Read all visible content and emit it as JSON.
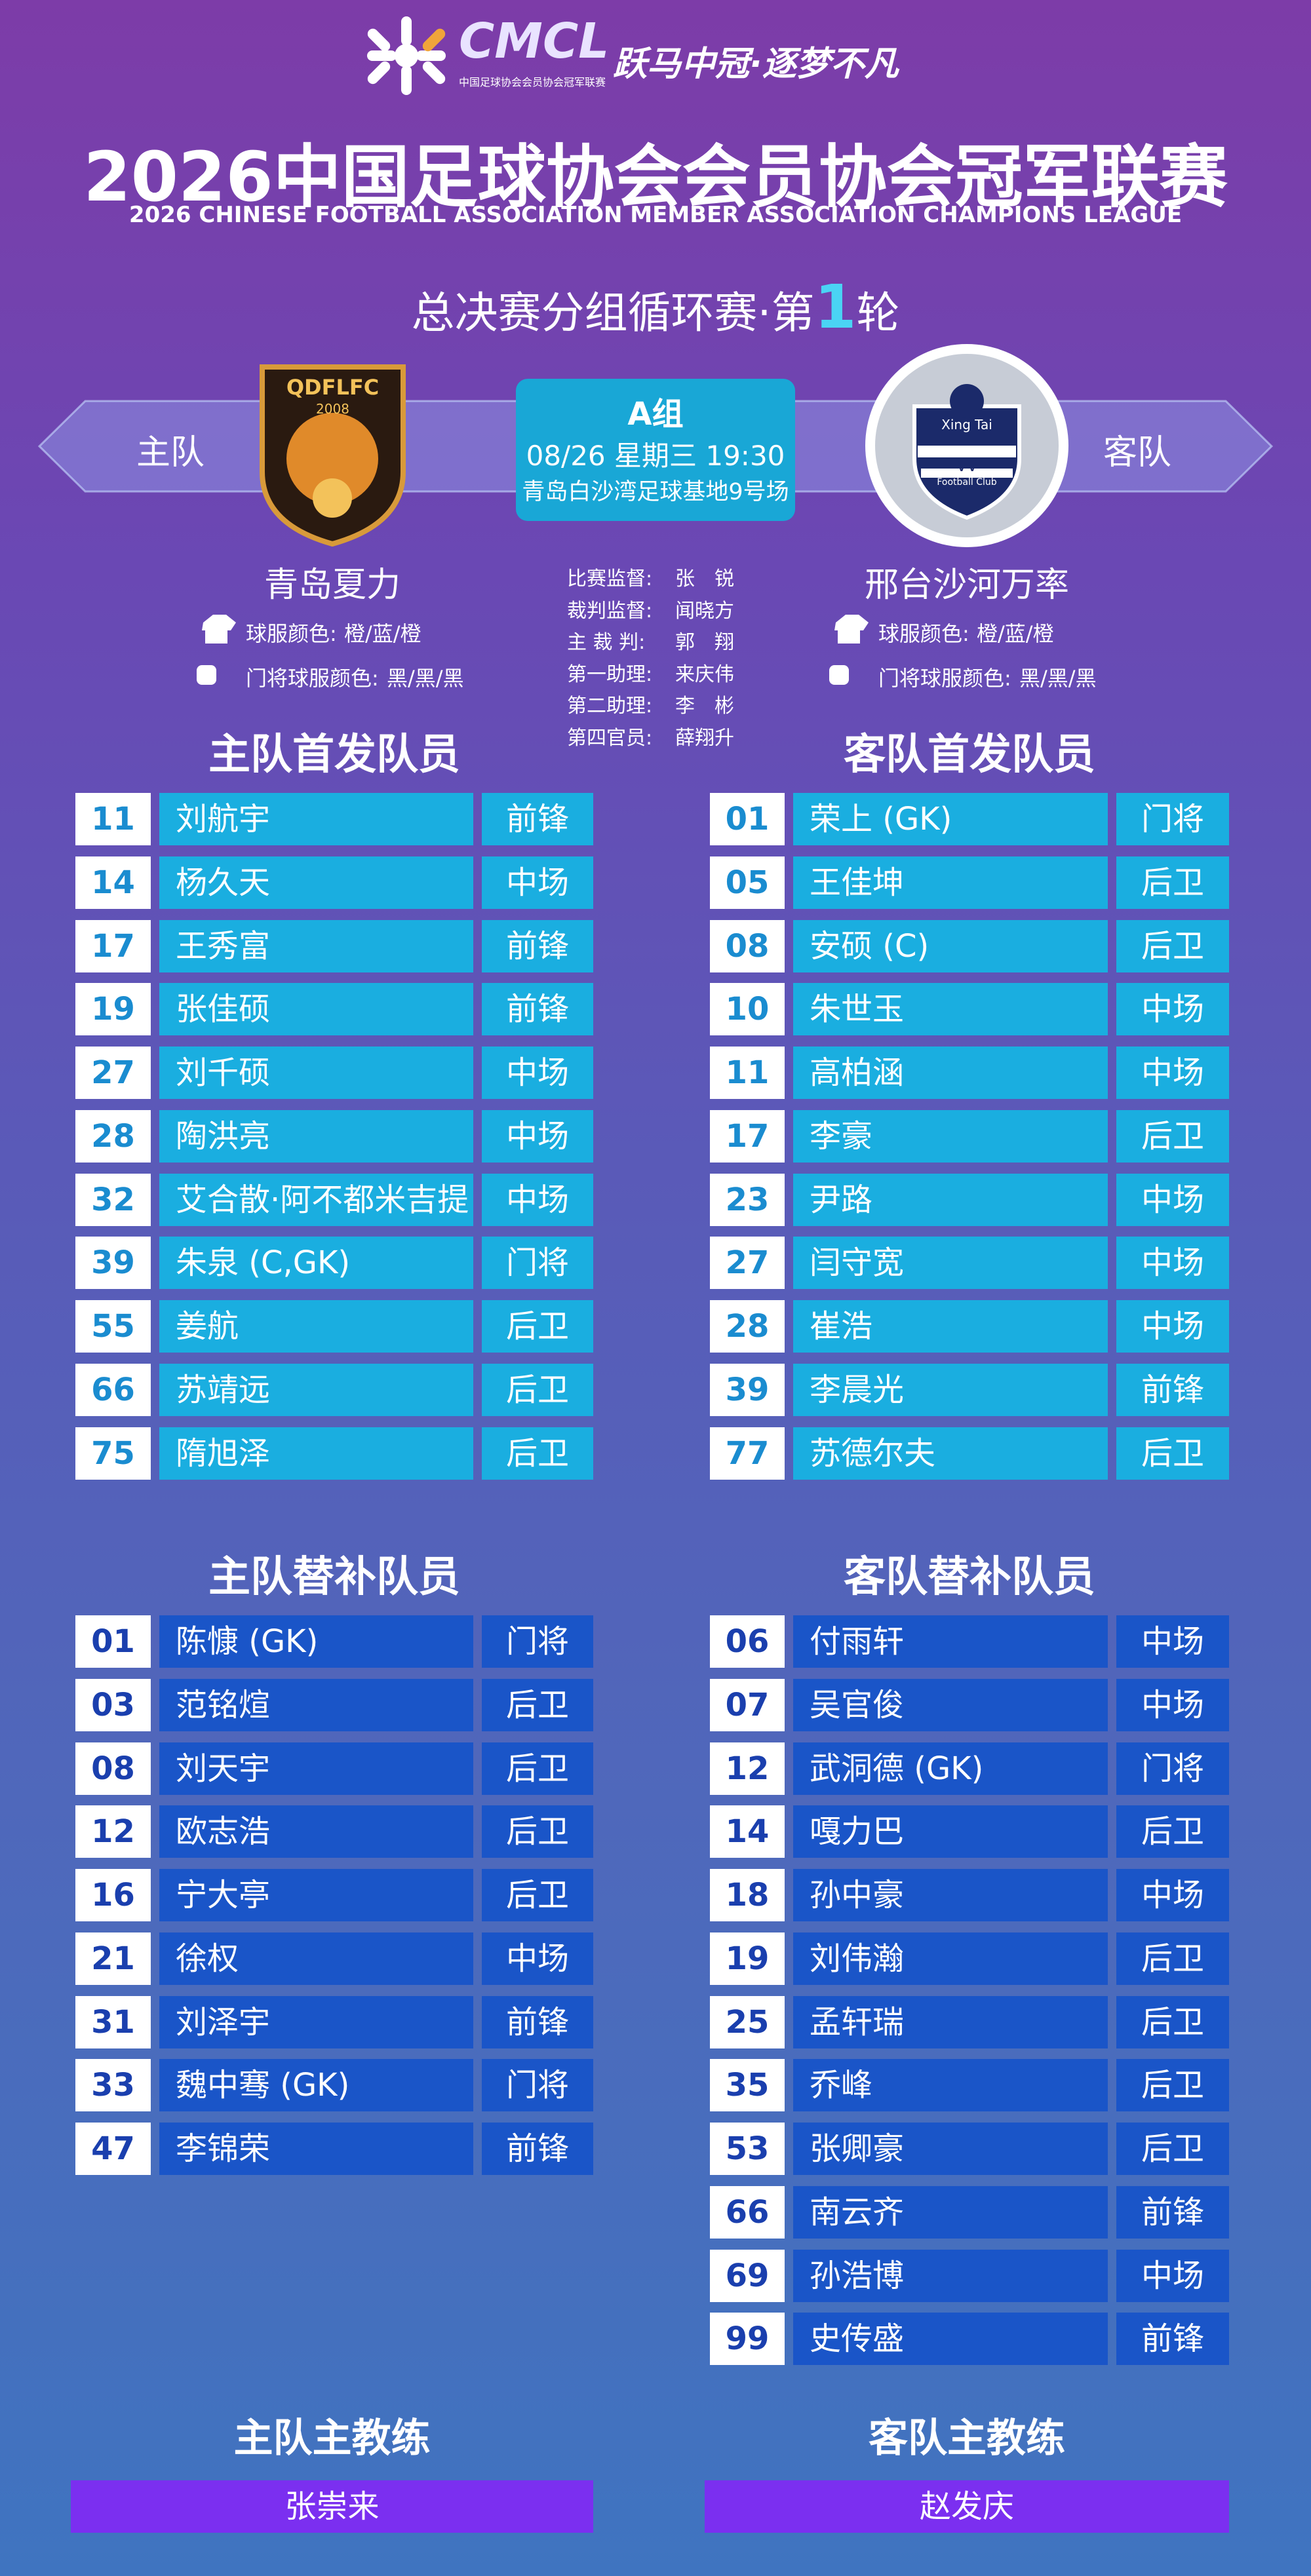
{
  "header": {
    "logo_text": "CMCL",
    "logo_sub": "中国足球协会会员协会冠军联赛",
    "slogan": "跃马中冠·逐梦不凡",
    "title": "2026中国足球协会会员协会冠军联赛",
    "subtitle": "2026 CHINESE FOOTBALL ASSOCIATION MEMBER ASSOCIATION CHAMPIONS LEAGUE",
    "round_prefix": "总决赛分组循环赛·第",
    "round_number": "1",
    "round_suffix": "轮"
  },
  "match": {
    "home_label": "主队",
    "away_label": "客队",
    "group": "A组",
    "datetime": "08/26 星期三 19:30",
    "venue": "青岛白沙湾足球基地9号场"
  },
  "home": {
    "name": "青岛夏力",
    "logo_text": "QDFLFC",
    "logo_year": "2008",
    "kit_label": "球服颜色:",
    "kit": "橙/蓝/橙",
    "gk_kit_label": "门将球服颜色:",
    "gk_kit": "黑/黑/黑"
  },
  "away": {
    "name": "邢台沙河万率",
    "logo_lines": [
      "Xing Tai",
      "VV",
      "Football Club"
    ],
    "kit_label": "球服颜色:",
    "kit": "橙/蓝/橙",
    "gk_kit_label": "门将球服颜色:",
    "gk_kit": "黑/黑/黑"
  },
  "officials": [
    [
      "比赛监督:",
      "张　锐"
    ],
    [
      "裁判监督:",
      "闻晓方"
    ],
    [
      "主 裁 判:",
      "郭　翔"
    ],
    [
      "第一助理:",
      "来庆伟"
    ],
    [
      "第二助理:",
      "李　彬"
    ],
    [
      "第四官员:",
      "薛翔升"
    ]
  ],
  "lineups": {
    "home_starters": {
      "title": "主队首发队员",
      "players": [
        [
          "11",
          "刘航宇",
          "前锋"
        ],
        [
          "14",
          "杨久天",
          "中场"
        ],
        [
          "17",
          "王秀富",
          "前锋"
        ],
        [
          "19",
          "张佳硕",
          "前锋"
        ],
        [
          "27",
          "刘千硕",
          "中场"
        ],
        [
          "28",
          "陶洪亮",
          "中场"
        ],
        [
          "32",
          "艾合散·阿不都米吉提",
          "中场"
        ],
        [
          "39",
          "朱泉 (C,GK)",
          "门将"
        ],
        [
          "55",
          "姜航",
          "后卫"
        ],
        [
          "66",
          "苏靖远",
          "后卫"
        ],
        [
          "75",
          "隋旭泽",
          "后卫"
        ]
      ]
    },
    "away_starters": {
      "title": "客队首发队员",
      "players": [
        [
          "01",
          "荣上 (GK)",
          "门将"
        ],
        [
          "05",
          "王佳坤",
          "后卫"
        ],
        [
          "08",
          "安硕 (C)",
          "后卫"
        ],
        [
          "10",
          "朱世玉",
          "中场"
        ],
        [
          "11",
          "高柏涵",
          "中场"
        ],
        [
          "17",
          "李豪",
          "后卫"
        ],
        [
          "23",
          "尹路",
          "中场"
        ],
        [
          "27",
          "闫守宽",
          "中场"
        ],
        [
          "28",
          "崔浩",
          "中场"
        ],
        [
          "39",
          "李晨光",
          "前锋"
        ],
        [
          "77",
          "苏德尔夫",
          "后卫"
        ]
      ]
    },
    "home_subs": {
      "title": "主队替补队员",
      "players": [
        [
          "01",
          "陈慷 (GK)",
          "门将"
        ],
        [
          "03",
          "范铭煊",
          "后卫"
        ],
        [
          "08",
          "刘天宇",
          "后卫"
        ],
        [
          "12",
          "欧志浩",
          "后卫"
        ],
        [
          "16",
          "宁大亭",
          "后卫"
        ],
        [
          "21",
          "徐权",
          "中场"
        ],
        [
          "31",
          "刘泽宇",
          "前锋"
        ],
        [
          "33",
          "魏中骞 (GK)",
          "门将"
        ],
        [
          "47",
          "李锦荣",
          "前锋"
        ]
      ]
    },
    "away_subs": {
      "title": "客队替补队员",
      "players": [
        [
          "06",
          "付雨轩",
          "中场"
        ],
        [
          "07",
          "吴官俊",
          "中场"
        ],
        [
          "12",
          "武洞德 (GK)",
          "门将"
        ],
        [
          "14",
          "嘎力巴",
          "后卫"
        ],
        [
          "18",
          "孙中豪",
          "中场"
        ],
        [
          "19",
          "刘伟瀚",
          "后卫"
        ],
        [
          "25",
          "孟轩瑞",
          "后卫"
        ],
        [
          "35",
          "乔峰",
          "后卫"
        ],
        [
          "53",
          "张卿豪",
          "后卫"
        ],
        [
          "66",
          "南云齐",
          "前锋"
        ],
        [
          "69",
          "孙浩博",
          "中场"
        ],
        [
          "99",
          "史传盛",
          "前锋"
        ]
      ]
    }
  },
  "coaches": {
    "home_label": "主队主教练",
    "home_name": "张崇来",
    "away_label": "客队主教练",
    "away_name": "赵发庆"
  }
}
